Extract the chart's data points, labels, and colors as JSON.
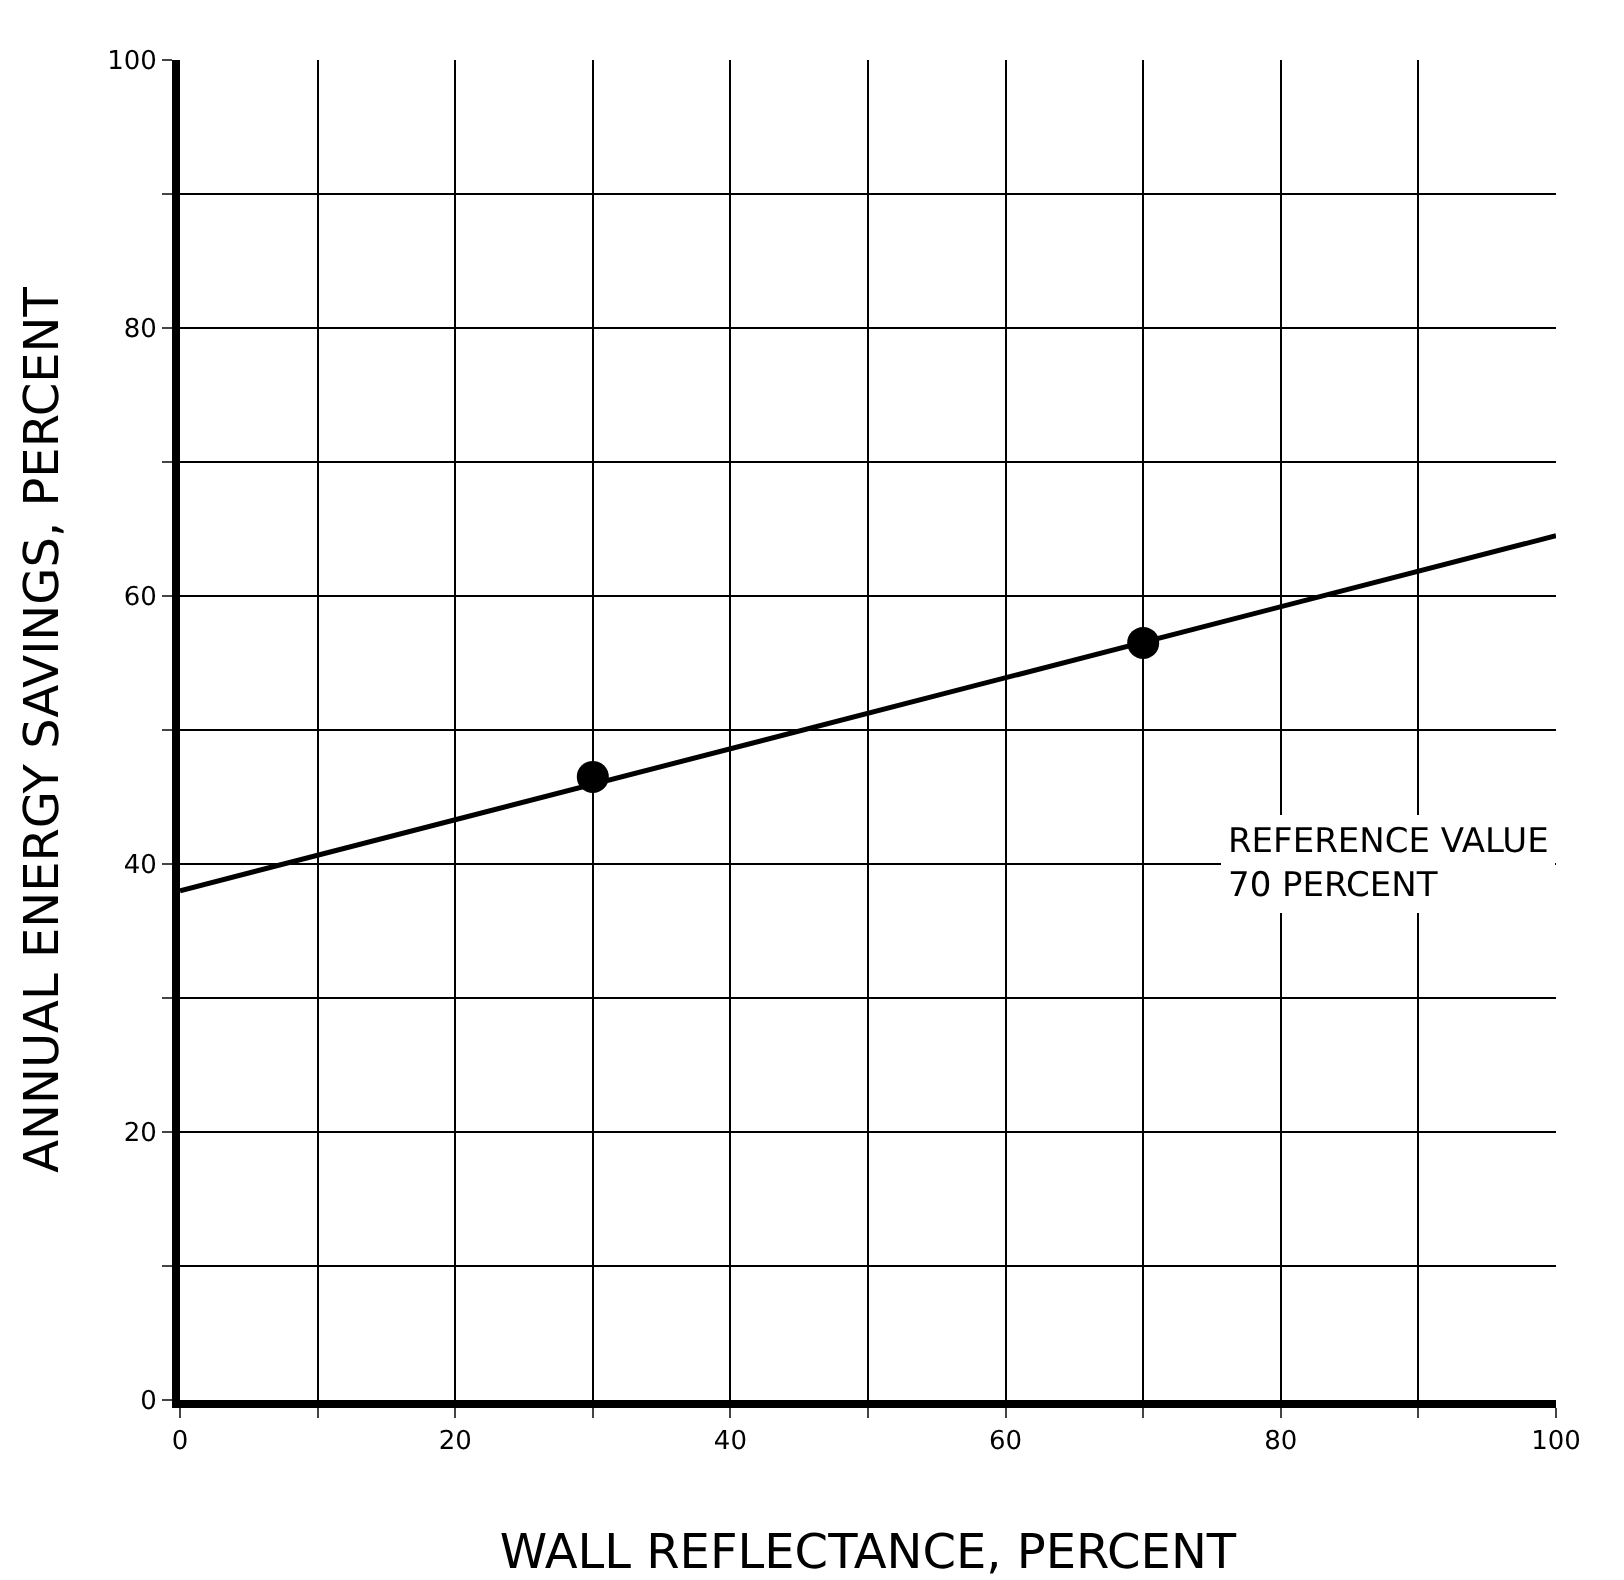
{
  "chart_data": {
    "type": "scatter",
    "xlabel": "WALL REFLECTANCE, PERCENT",
    "ylabel": "ANNUAL ENERGY SAVINGS, PERCENT",
    "annotations": [
      "REFERENCE VALUE\n70 PERCENT"
    ],
    "xlim": [
      0,
      100
    ],
    "ylim": [
      0,
      100
    ],
    "xticks": [
      0,
      {
        "value": 10,
        "label": null
      },
      20,
      {
        "value": 30,
        "label": null
      },
      40,
      {
        "value": 50,
        "label": null
      },
      60,
      {
        "value": 70,
        "label": null
      },
      80,
      {
        "value": 90,
        "label": null
      },
      100
    ],
    "yticks": [
      0,
      {
        "value": 10,
        "label": null
      },
      20,
      {
        "value": 30,
        "label": null
      },
      40,
      {
        "value": 50,
        "label": null
      },
      60,
      {
        "value": 70,
        "label": null
      },
      80,
      {
        "value": 90,
        "label": null
      },
      100
    ],
    "grid": true,
    "series": [
      {
        "x": [
          30,
          70
        ],
        "values": [
          46.5,
          56.5
        ],
        "color": "#000000",
        "marker": "circle"
      },
      {
        "type": "line",
        "x": [
          0,
          100
        ],
        "values": [
          38,
          64.5
        ],
        "color": "#000000",
        "marker": "none",
        "line_style": "solid"
      }
    ]
  }
}
